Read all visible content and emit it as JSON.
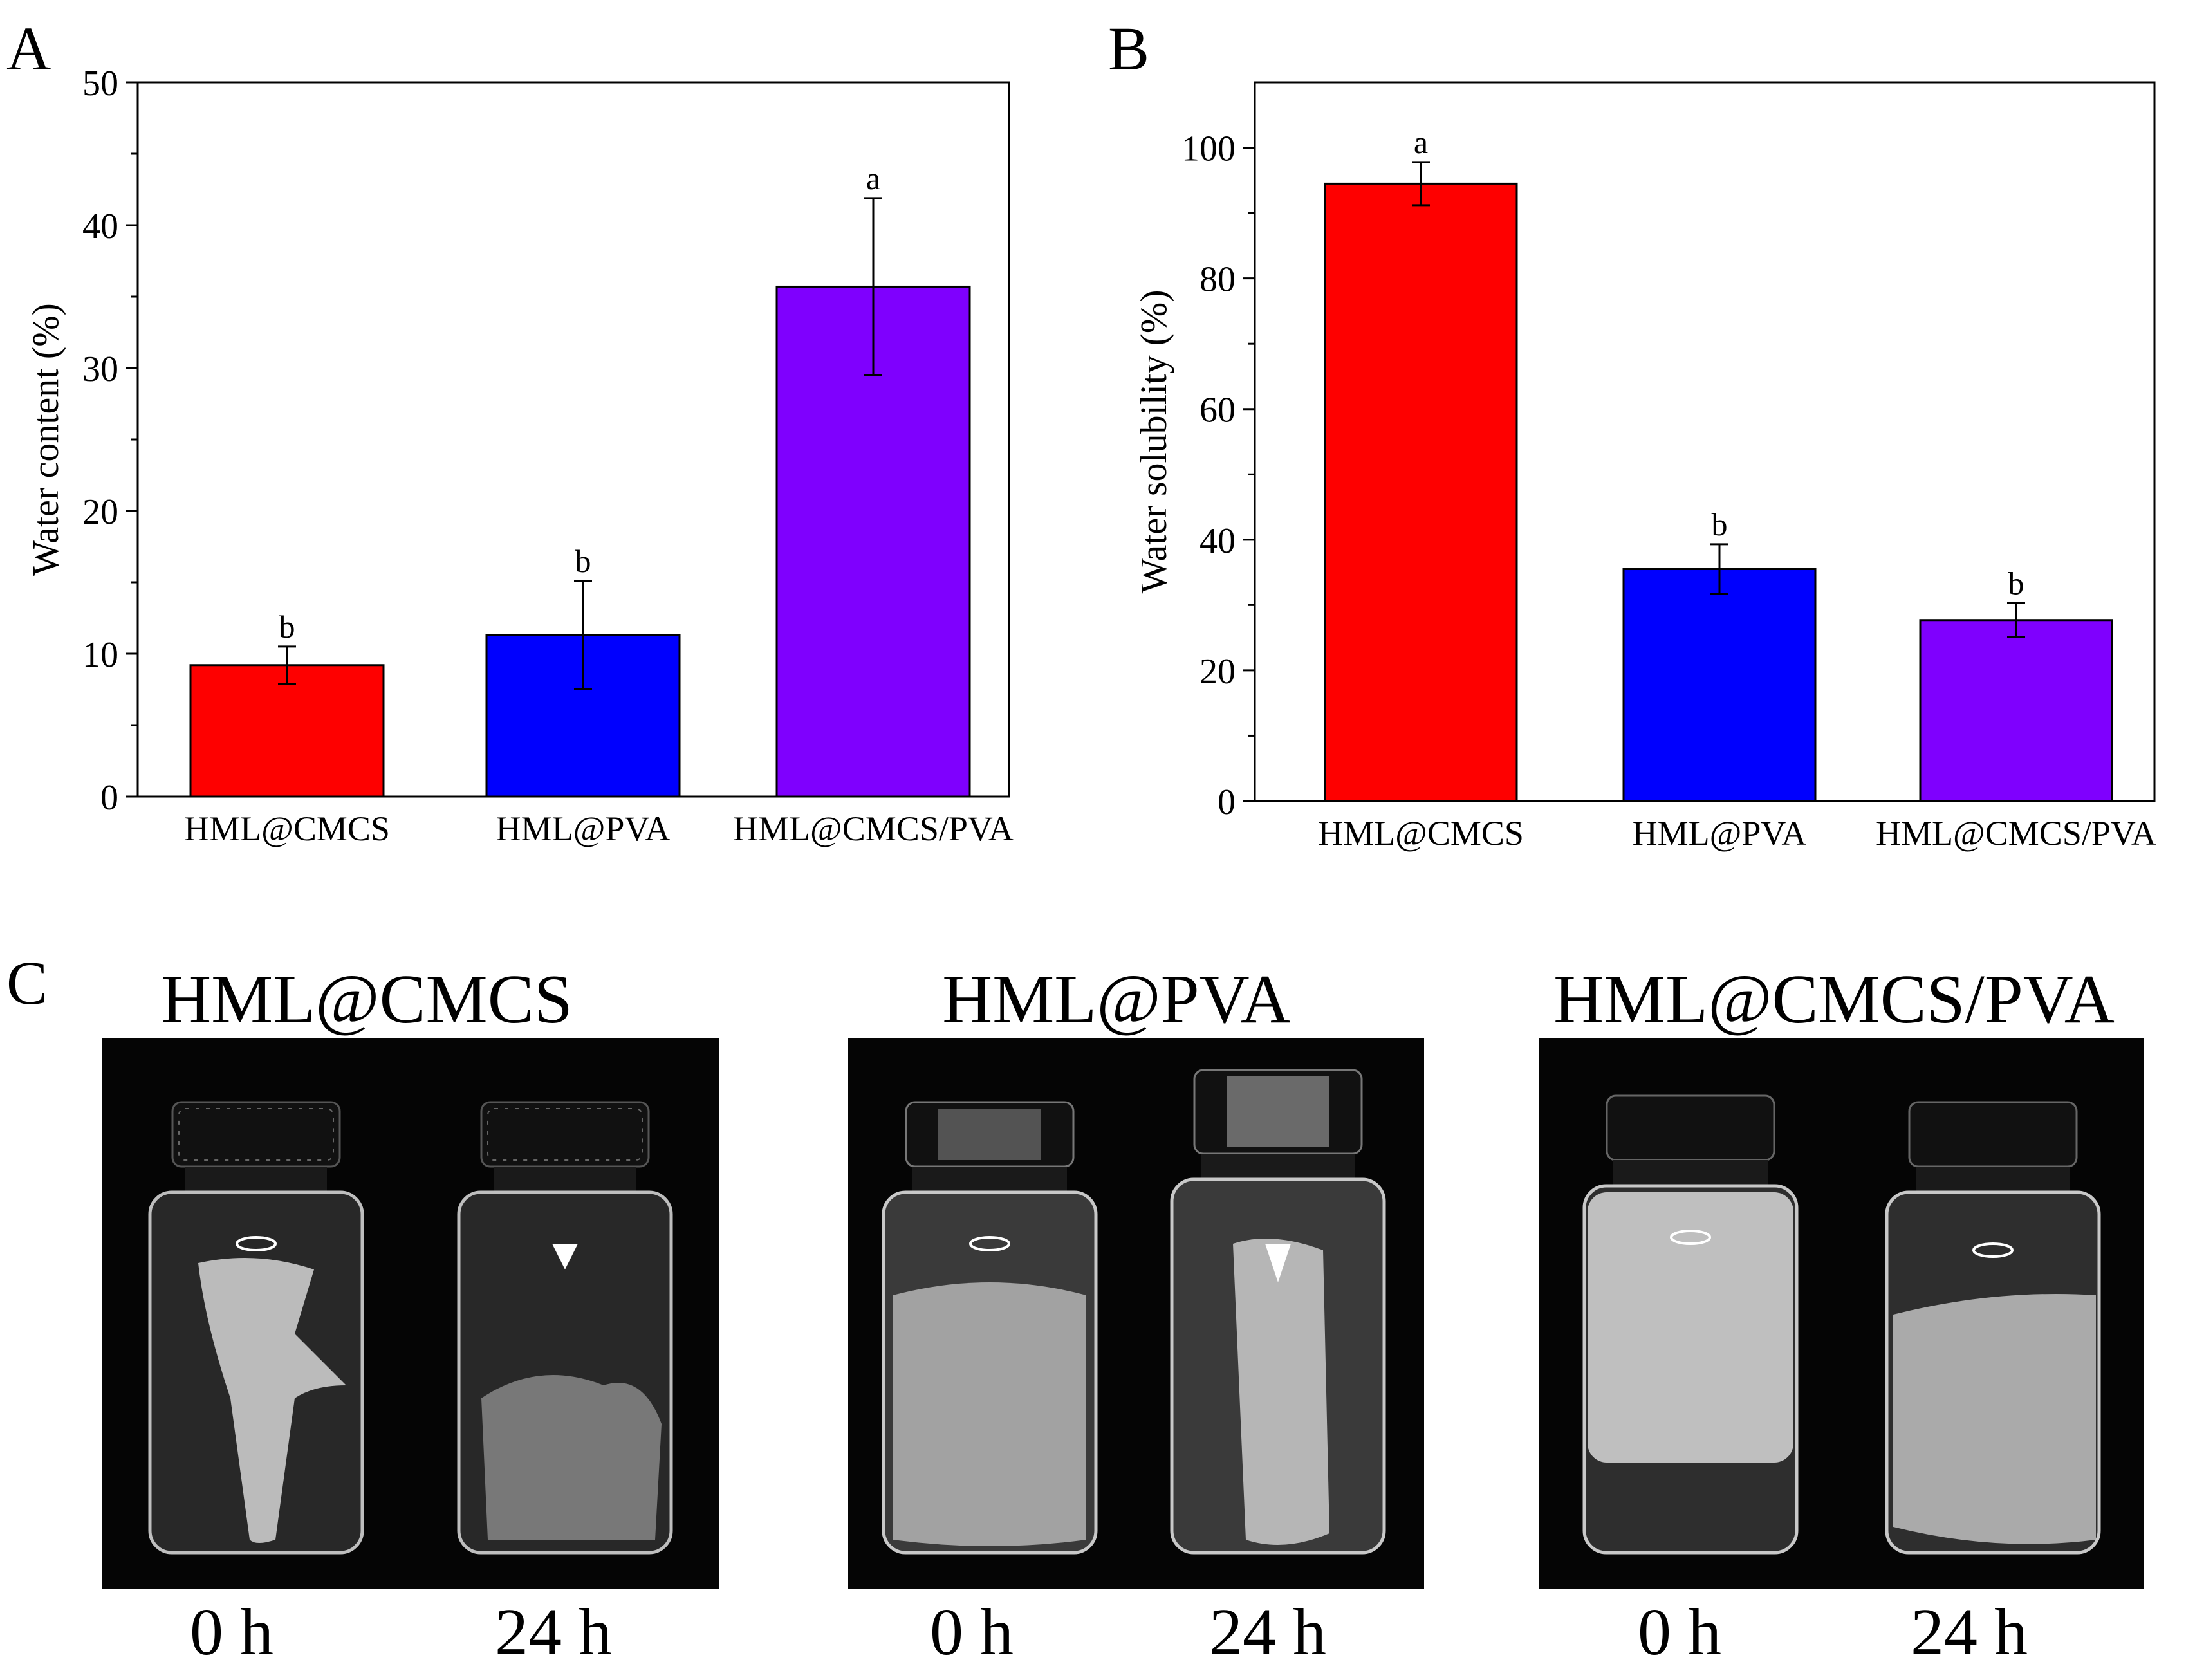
{
  "panels": {
    "A": "A",
    "B": "B",
    "C": "C"
  },
  "chart_data": [
    {
      "panel": "A",
      "type": "bar",
      "categories": [
        "HML@CMCS",
        "HML@PVA",
        "HML@CMCS/PVA"
      ],
      "values": [
        9.2,
        11.3,
        35.7
      ],
      "errors": [
        1.3,
        3.8,
        6.2
      ],
      "significance": [
        "b",
        "b",
        "a"
      ],
      "colors": [
        "#fe0000",
        "#0000fe",
        "#7f00fe"
      ],
      "ylabel": "Water content (%)",
      "xlabel": "",
      "ylim": [
        0,
        50
      ],
      "yticks": [
        0,
        10,
        20,
        30,
        40,
        50
      ]
    },
    {
      "panel": "B",
      "type": "bar",
      "categories": [
        "HML@CMCS",
        "HML@PVA",
        "HML@CMCS/PVA"
      ],
      "values": [
        94.5,
        35.5,
        27.7
      ],
      "errors": [
        3.3,
        3.8,
        2.6
      ],
      "significance": [
        "a",
        "b",
        "b"
      ],
      "colors": [
        "#fe0000",
        "#0000fe",
        "#7f00fe"
      ],
      "ylabel": "Water solubility (%)",
      "xlabel": "",
      "ylim": [
        0,
        110
      ],
      "yticks": [
        0,
        20,
        40,
        60,
        80,
        100
      ]
    }
  ],
  "photos": [
    {
      "title": "HML@CMCS",
      "times": [
        "0 h",
        "24 h"
      ]
    },
    {
      "title": "HML@PVA",
      "times": [
        "0 h",
        "24 h"
      ]
    },
    {
      "title": "HML@CMCS/PVA",
      "times": [
        "0 h",
        "24 h"
      ]
    }
  ]
}
